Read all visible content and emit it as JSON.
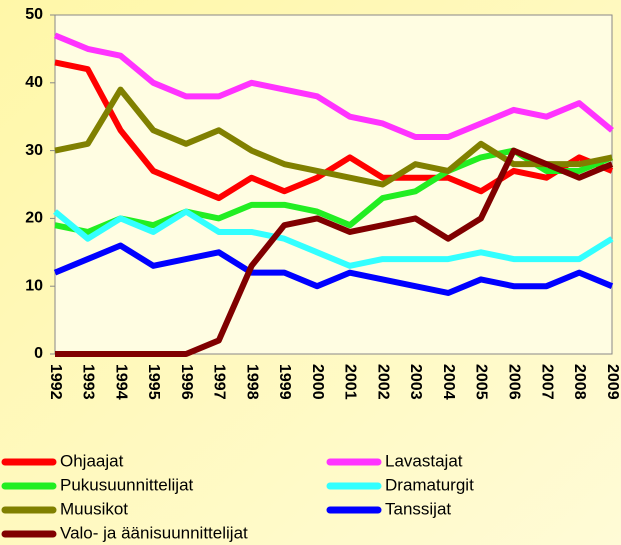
{
  "chart_data": {
    "type": "line",
    "categories": [
      "1992",
      "1993",
      "1994",
      "1995",
      "1996",
      "1997",
      "1998",
      "1999",
      "2000",
      "2001",
      "2002",
      "2003",
      "2004",
      "2005",
      "2006",
      "2007",
      "2008",
      "2009"
    ],
    "ylim": [
      0,
      50
    ],
    "yticks": [
      0,
      10,
      20,
      30,
      40,
      50
    ],
    "grid": false,
    "series": [
      {
        "name": "Ohjaajat",
        "color": "#ff0000",
        "values": [
          43,
          42,
          33,
          27,
          25,
          23,
          26,
          24,
          26,
          29,
          26,
          26,
          26,
          24,
          27,
          26,
          29,
          27
        ]
      },
      {
        "name": "Lavastajat",
        "color": "#ff33ff",
        "values": [
          47,
          45,
          44,
          40,
          38,
          38,
          40,
          39,
          38,
          35,
          34,
          32,
          32,
          34,
          36,
          35,
          37,
          33
        ]
      },
      {
        "name": "Pukusuunnittelijat",
        "color": "#22ee22",
        "values": [
          19,
          18,
          20,
          19,
          21,
          20,
          22,
          22,
          21,
          19,
          23,
          24,
          27,
          29,
          30,
          27,
          27,
          29
        ]
      },
      {
        "name": "Dramaturgit",
        "color": "#33ffff",
        "values": [
          21,
          17,
          20,
          18,
          21,
          18,
          18,
          17,
          15,
          13,
          14,
          14,
          14,
          15,
          14,
          14,
          14,
          17
        ]
      },
      {
        "name": "Muusikot",
        "color": "#808000",
        "values": [
          30,
          31,
          39,
          33,
          31,
          33,
          30,
          28,
          27,
          26,
          25,
          28,
          27,
          31,
          28,
          28,
          28,
          29
        ]
      },
      {
        "name": "Tanssijat",
        "color": "#0000ff",
        "values": [
          12,
          14,
          16,
          13,
          14,
          15,
          12,
          12,
          10,
          12,
          11,
          10,
          9,
          11,
          10,
          10,
          12,
          10
        ]
      },
      {
        "name": "Valo- ja äänisuunnittelijat",
        "color": "#800000",
        "values": [
          0,
          0,
          0,
          0,
          0,
          2,
          13,
          19,
          20,
          18,
          19,
          20,
          17,
          20,
          30,
          28,
          26,
          28
        ]
      }
    ]
  }
}
